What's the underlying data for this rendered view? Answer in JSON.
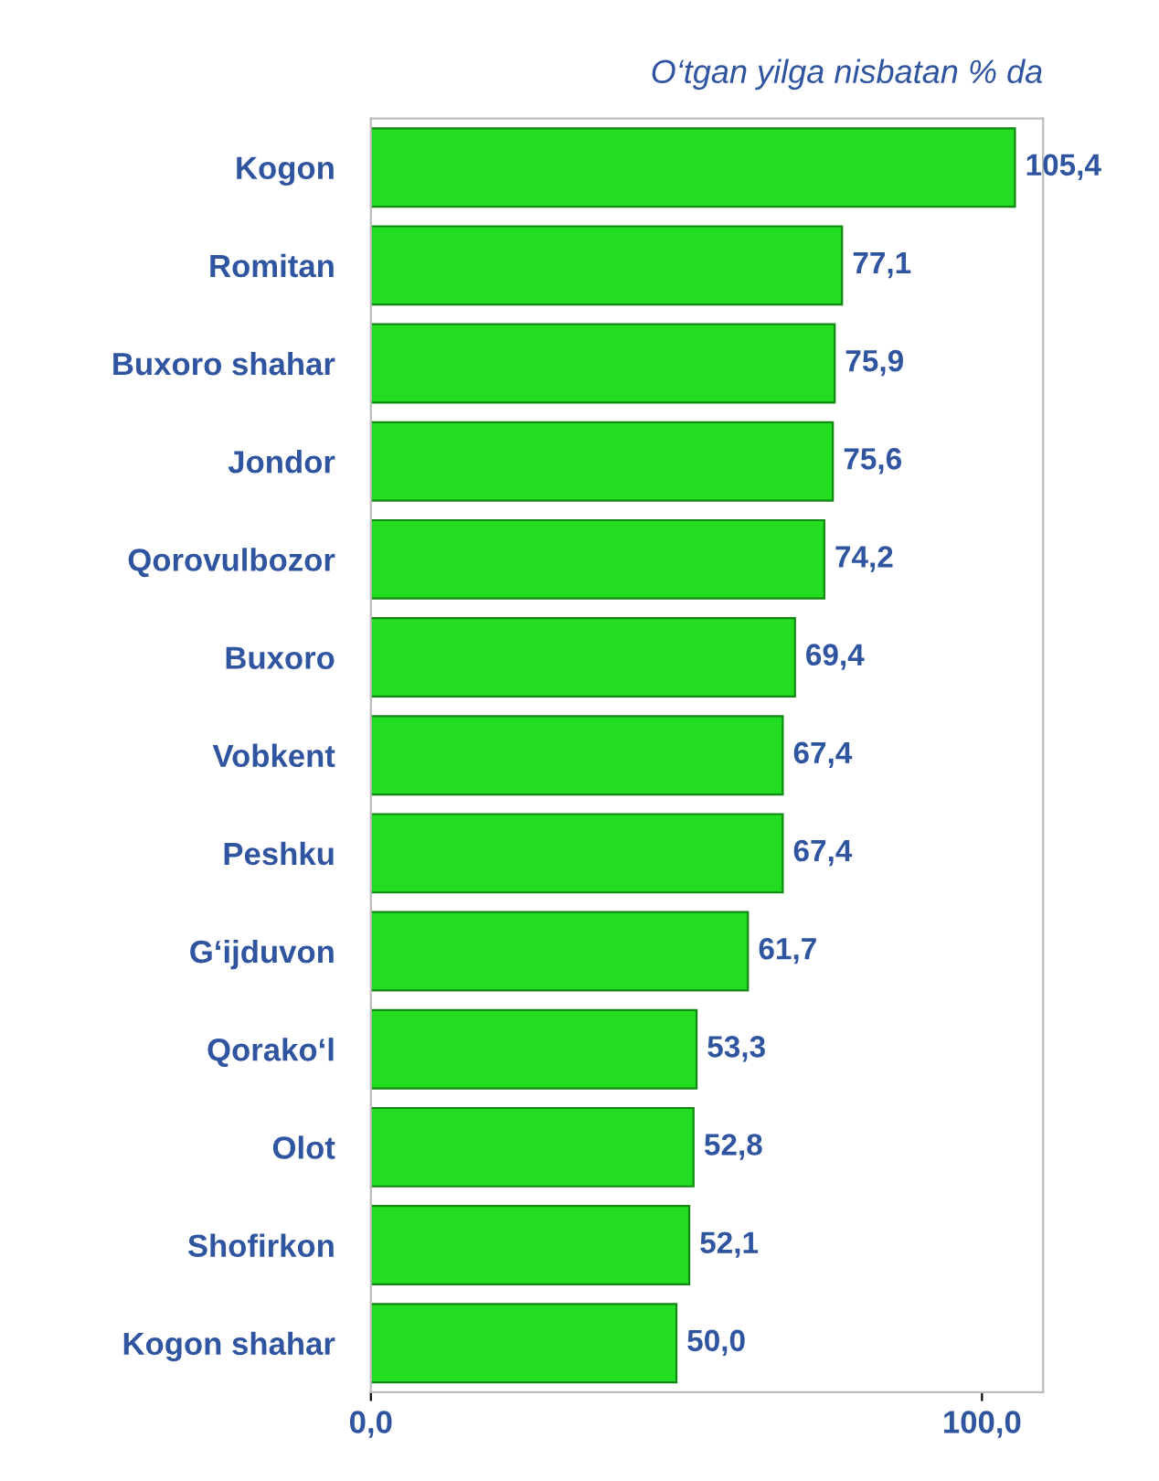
{
  "chart_data": {
    "type": "bar",
    "orientation": "horizontal",
    "title": "O‘tgan yilga nisbatan % da",
    "categories": [
      "Kogon",
      "Romitan",
      "Buxoro shahar",
      "Jondor",
      "Qorovulbozor",
      "Buxoro",
      "Vobkent",
      "Peshku",
      "G‘ijduvon",
      "Qorako‘l",
      "Olot",
      "Shofirkon",
      "Kogon shahar"
    ],
    "values": [
      105.4,
      77.1,
      75.9,
      75.6,
      74.2,
      69.4,
      67.4,
      67.4,
      61.7,
      53.3,
      52.8,
      52.1,
      50.0
    ],
    "value_labels": [
      "105,4",
      "77,1",
      "75,9",
      "75,6",
      "74,2",
      "69,4",
      "67,4",
      "67,4",
      "61,7",
      "53,3",
      "52,8",
      "52,1",
      "50,0"
    ],
    "color": "#22dd22",
    "xlim": [
      0,
      110
    ],
    "xticks": [
      {
        "value": 0,
        "label": "0,0"
      },
      {
        "value": 100,
        "label": "100,0"
      }
    ],
    "grid": false,
    "legend": false
  }
}
